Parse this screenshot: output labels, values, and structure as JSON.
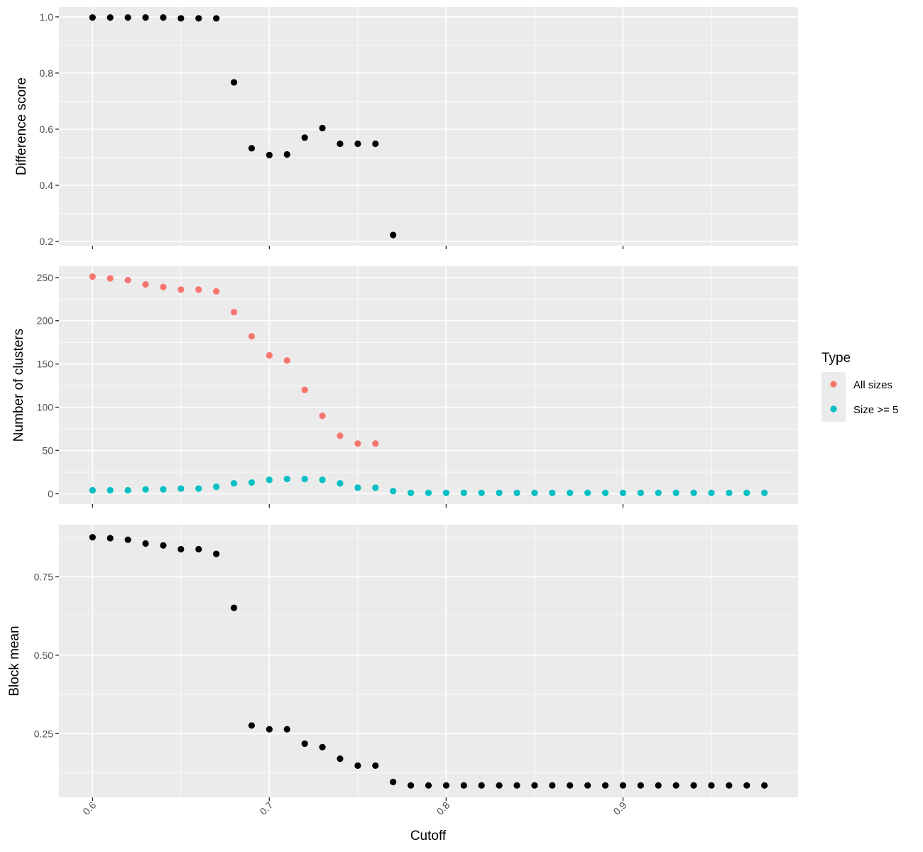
{
  "chart_data": [
    {
      "type": "scatter",
      "ylabel": "Difference score",
      "xlim": [
        0.581,
        0.999
      ],
      "ylim": [
        0.185,
        1.035
      ],
      "x_ticks": [
        "0.6",
        "0.7",
        "0.8",
        "0.9"
      ],
      "y_ticks": [
        "0.2",
        "0.4",
        "0.6",
        "0.8",
        "1.0"
      ],
      "grid": true,
      "series": [
        {
          "color": "#000000",
          "points": [
            [
              0.6,
              0.998
            ],
            [
              0.61,
              0.998
            ],
            [
              0.62,
              0.998
            ],
            [
              0.63,
              0.998
            ],
            [
              0.64,
              0.998
            ],
            [
              0.65,
              0.995
            ],
            [
              0.66,
              0.995
            ],
            [
              0.67,
              0.995
            ],
            [
              0.68,
              0.767
            ],
            [
              0.69,
              0.532
            ],
            [
              0.7,
              0.508
            ],
            [
              0.71,
              0.51
            ],
            [
              0.72,
              0.57
            ],
            [
              0.73,
              0.604
            ],
            [
              0.74,
              0.548
            ],
            [
              0.75,
              0.548
            ],
            [
              0.76,
              0.548
            ],
            [
              0.77,
              0.223
            ]
          ]
        }
      ]
    },
    {
      "type": "scatter",
      "ylabel": "Number of clusters",
      "xlim": [
        0.581,
        0.999
      ],
      "ylim": [
        -12,
        263
      ],
      "x_ticks": [
        "0.6",
        "0.7",
        "0.8",
        "0.9"
      ],
      "y_ticks": [
        "0",
        "50",
        "100",
        "150",
        "200",
        "250"
      ],
      "grid": true,
      "series": [
        {
          "name": "All sizes",
          "color": "#F8766D",
          "points": [
            [
              0.6,
              251
            ],
            [
              0.61,
              249
            ],
            [
              0.62,
              247
            ],
            [
              0.63,
              242
            ],
            [
              0.64,
              239
            ],
            [
              0.65,
              236
            ],
            [
              0.66,
              236
            ],
            [
              0.67,
              234
            ],
            [
              0.68,
              210
            ],
            [
              0.69,
              182
            ],
            [
              0.7,
              160
            ],
            [
              0.71,
              154
            ],
            [
              0.72,
              120
            ],
            [
              0.73,
              90
            ],
            [
              0.74,
              67
            ],
            [
              0.75,
              58
            ],
            [
              0.76,
              58
            ]
          ]
        },
        {
          "name": "Size >= 5",
          "color": "#00BFC4",
          "points": [
            [
              0.6,
              4
            ],
            [
              0.61,
              4
            ],
            [
              0.62,
              4
            ],
            [
              0.63,
              5
            ],
            [
              0.64,
              5
            ],
            [
              0.65,
              6
            ],
            [
              0.66,
              6
            ],
            [
              0.67,
              8
            ],
            [
              0.68,
              12
            ],
            [
              0.69,
              13
            ],
            [
              0.7,
              16
            ],
            [
              0.71,
              17
            ],
            [
              0.72,
              17
            ],
            [
              0.73,
              16
            ],
            [
              0.74,
              12
            ],
            [
              0.75,
              7
            ],
            [
              0.76,
              7
            ],
            [
              0.77,
              3
            ],
            [
              0.78,
              1
            ],
            [
              0.79,
              1
            ],
            [
              0.8,
              1
            ],
            [
              0.81,
              1
            ],
            [
              0.82,
              1
            ],
            [
              0.83,
              1
            ],
            [
              0.84,
              1
            ],
            [
              0.85,
              1
            ],
            [
              0.86,
              1
            ],
            [
              0.87,
              1
            ],
            [
              0.88,
              1
            ],
            [
              0.89,
              1
            ],
            [
              0.9,
              1
            ],
            [
              0.91,
              1
            ],
            [
              0.92,
              1
            ],
            [
              0.93,
              1
            ],
            [
              0.94,
              1
            ],
            [
              0.95,
              1
            ],
            [
              0.96,
              1
            ],
            [
              0.97,
              1
            ],
            [
              0.98,
              1
            ]
          ]
        }
      ]
    },
    {
      "type": "scatter",
      "ylabel": "Block mean",
      "xlabel": "Cutoff",
      "xlim": [
        0.581,
        0.999
      ],
      "ylim": [
        0.047,
        0.916
      ],
      "x_ticks": [
        "0.6",
        "0.7",
        "0.8",
        "0.9"
      ],
      "y_ticks": [
        "0.25",
        "0.50",
        "0.75"
      ],
      "grid": true,
      "series": [
        {
          "color": "#000000",
          "points": [
            [
              0.6,
              0.876
            ],
            [
              0.61,
              0.873
            ],
            [
              0.62,
              0.868
            ],
            [
              0.63,
              0.856
            ],
            [
              0.64,
              0.85
            ],
            [
              0.65,
              0.838
            ],
            [
              0.66,
              0.838
            ],
            [
              0.67,
              0.823
            ],
            [
              0.68,
              0.651
            ],
            [
              0.69,
              0.276
            ],
            [
              0.7,
              0.264
            ],
            [
              0.71,
              0.264
            ],
            [
              0.72,
              0.218
            ],
            [
              0.73,
              0.207
            ],
            [
              0.74,
              0.17
            ],
            [
              0.75,
              0.148
            ],
            [
              0.76,
              0.148
            ],
            [
              0.77,
              0.096
            ],
            [
              0.78,
              0.085
            ],
            [
              0.79,
              0.085
            ],
            [
              0.8,
              0.085
            ],
            [
              0.81,
              0.085
            ],
            [
              0.82,
              0.085
            ],
            [
              0.83,
              0.085
            ],
            [
              0.84,
              0.085
            ],
            [
              0.85,
              0.085
            ],
            [
              0.86,
              0.085
            ],
            [
              0.87,
              0.085
            ],
            [
              0.88,
              0.085
            ],
            [
              0.89,
              0.085
            ],
            [
              0.9,
              0.085
            ],
            [
              0.91,
              0.085
            ],
            [
              0.92,
              0.085
            ],
            [
              0.93,
              0.085
            ],
            [
              0.94,
              0.085
            ],
            [
              0.95,
              0.085
            ],
            [
              0.96,
              0.085
            ],
            [
              0.97,
              0.085
            ],
            [
              0.98,
              0.085
            ]
          ]
        }
      ]
    }
  ],
  "legend": {
    "title": "Type",
    "placement": "right",
    "items": [
      {
        "label": "All sizes",
        "color": "#F8766D"
      },
      {
        "label": "Size >= 5",
        "color": "#00BFC4"
      }
    ]
  },
  "colors": {
    "panel_background": "#EBEBEB",
    "grid_major": "#FFFFFF",
    "tick_text": "#4D4D4D",
    "tick_mark": "#333333"
  }
}
